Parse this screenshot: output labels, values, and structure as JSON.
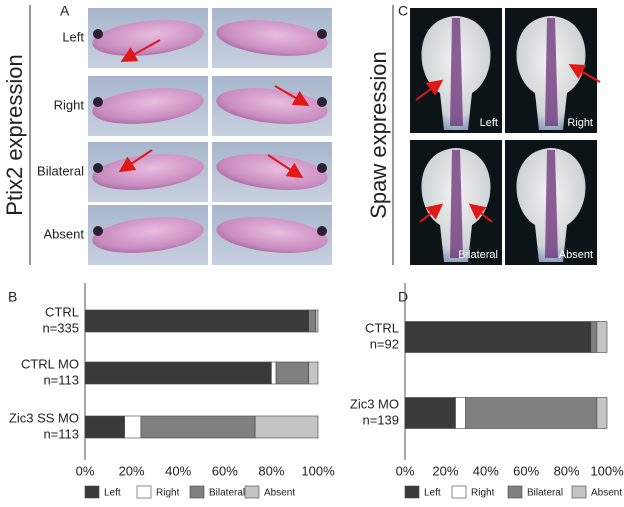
{
  "figure": {
    "panel_a": {
      "letter": "A",
      "title": "Ptix2 expression",
      "rows": [
        "Left",
        "Right",
        "Bilateral",
        "Absent"
      ]
    },
    "panel_c": {
      "letter": "C",
      "title": "Spaw expression",
      "labels": [
        "Left",
        "Right",
        "Bilateral",
        "Absent"
      ]
    }
  },
  "chart_data": [
    {
      "type": "bar",
      "orientation": "horizontal",
      "stacked": true,
      "letter": "B",
      "categories": [
        [
          "CTRL",
          "n=335"
        ],
        [
          "CTRL MO",
          "n=113"
        ],
        [
          "Zic3 SS MO",
          "n=113"
        ]
      ],
      "series": [
        {
          "name": "Left",
          "color": "#3a3a3a",
          "values": [
            96,
            80,
            17
          ]
        },
        {
          "name": "Right",
          "color": "#ffffff",
          "values": [
            0,
            2,
            7
          ]
        },
        {
          "name": "Bilateral",
          "color": "#808080",
          "values": [
            3,
            14,
            49
          ]
        },
        {
          "name": "Absent",
          "color": "#c4c4c4",
          "values": [
            1,
            4,
            27
          ]
        }
      ],
      "xlim": [
        0,
        100
      ],
      "xticks": [
        {
          "value": 0,
          "label": "0%"
        },
        {
          "value": 20,
          "label": "20%"
        },
        {
          "value": 40,
          "label": "40%"
        },
        {
          "value": 60,
          "label": "60%"
        },
        {
          "value": 80,
          "label": "80%"
        },
        {
          "value": 100,
          "label": "100%"
        }
      ]
    },
    {
      "type": "bar",
      "orientation": "horizontal",
      "stacked": true,
      "letter": "D",
      "categories": [
        [
          "CTRL",
          "n=92"
        ],
        [
          "Zic3 MO",
          "n=139"
        ]
      ],
      "series": [
        {
          "name": "Left",
          "color": "#3a3a3a",
          "values": [
            92,
            25
          ]
        },
        {
          "name": "Right",
          "color": "#ffffff",
          "values": [
            0,
            5
          ]
        },
        {
          "name": "Bilateral",
          "color": "#808080",
          "values": [
            3,
            65
          ]
        },
        {
          "name": "Absent",
          "color": "#c4c4c4",
          "values": [
            5,
            5
          ]
        }
      ],
      "xlim": [
        0,
        100
      ],
      "xticks": [
        {
          "value": 0,
          "label": "0%"
        },
        {
          "value": 20,
          "label": "20%"
        },
        {
          "value": 40,
          "label": "40%"
        },
        {
          "value": 60,
          "label": "60%"
        },
        {
          "value": 80,
          "label": "80%"
        },
        {
          "value": 100,
          "label": "100%"
        }
      ]
    }
  ]
}
